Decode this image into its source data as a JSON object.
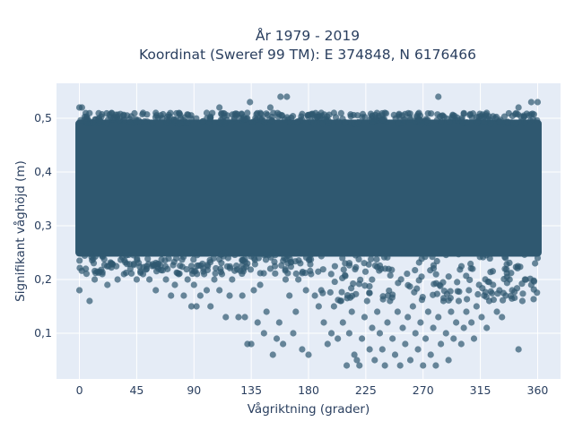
{
  "chart_data": {
    "type": "scatter",
    "title_lines": [
      "År 1979 - 2019",
      "Koordinat (Sweref 99 TM): E 374848, N 6176466"
    ],
    "xlabel": "Vågriktning (grader)",
    "ylabel": "Signifikant våghöjd (m)",
    "xlim": [
      -18,
      378
    ],
    "ylim": [
      0.015,
      0.565
    ],
    "x_ticks": [
      0,
      45,
      90,
      135,
      180,
      225,
      270,
      315,
      360
    ],
    "x_tick_labels": [
      "0",
      "45",
      "90",
      "135",
      "180",
      "225",
      "270",
      "315",
      "360"
    ],
    "y_ticks": [
      0.1,
      0.2,
      0.3,
      0.4,
      0.5
    ],
    "y_tick_labels": [
      "0,1",
      "0,2",
      "0,3",
      "0,4",
      "0,5"
    ],
    "grid": true,
    "legend": "none",
    "background": "#e5ecf6",
    "marker_color": "#2f5870",
    "marker_opacity": 0.7,
    "dense_band": {
      "x": [
        0,
        360
      ],
      "y": [
        0.25,
        0.49
      ]
    },
    "points": [
      [
        0,
        0.52
      ],
      [
        2,
        0.52
      ],
      [
        158,
        0.54
      ],
      [
        163,
        0.54
      ],
      [
        282,
        0.54
      ],
      [
        355,
        0.53
      ],
      [
        360,
        0.53
      ],
      [
        134,
        0.53
      ],
      [
        60,
        0.51
      ],
      [
        100,
        0.51
      ],
      [
        200,
        0.51
      ],
      [
        240,
        0.51
      ],
      [
        320,
        0.51
      ],
      [
        345,
        0.52
      ],
      [
        110,
        0.52
      ],
      [
        50,
        0.51
      ],
      [
        150,
        0.52
      ],
      [
        190,
        0.51
      ],
      [
        0,
        0.18
      ],
      [
        5,
        0.22
      ],
      [
        8,
        0.16
      ],
      [
        12,
        0.2
      ],
      [
        18,
        0.21
      ],
      [
        22,
        0.19
      ],
      [
        25,
        0.23
      ],
      [
        30,
        0.2
      ],
      [
        35,
        0.21
      ],
      [
        40,
        0.22
      ],
      [
        45,
        0.2
      ],
      [
        50,
        0.21
      ],
      [
        55,
        0.2
      ],
      [
        60,
        0.18
      ],
      [
        62,
        0.22
      ],
      [
        68,
        0.2
      ],
      [
        72,
        0.17
      ],
      [
        75,
        0.19
      ],
      [
        78,
        0.21
      ],
      [
        82,
        0.17
      ],
      [
        85,
        0.2
      ],
      [
        88,
        0.15
      ],
      [
        90,
        0.19
      ],
      [
        92,
        0.15
      ],
      [
        95,
        0.17
      ],
      [
        98,
        0.21
      ],
      [
        100,
        0.18
      ],
      [
        103,
        0.15
      ],
      [
        106,
        0.2
      ],
      [
        110,
        0.18
      ],
      [
        112,
        0.21
      ],
      [
        115,
        0.13
      ],
      [
        118,
        0.17
      ],
      [
        120,
        0.2
      ],
      [
        125,
        0.13
      ],
      [
        128,
        0.17
      ],
      [
        130,
        0.13
      ],
      [
        132,
        0.08
      ],
      [
        135,
        0.08
      ],
      [
        137,
        0.18
      ],
      [
        140,
        0.12
      ],
      [
        142,
        0.19
      ],
      [
        145,
        0.1
      ],
      [
        147,
        0.14
      ],
      [
        150,
        0.22
      ],
      [
        152,
        0.06
      ],
      [
        155,
        0.09
      ],
      [
        157,
        0.12
      ],
      [
        160,
        0.08
      ],
      [
        162,
        0.2
      ],
      [
        165,
        0.17
      ],
      [
        168,
        0.1
      ],
      [
        170,
        0.14
      ],
      [
        172,
        0.2
      ],
      [
        175,
        0.07
      ],
      [
        178,
        0.18
      ],
      [
        180,
        0.06
      ],
      [
        182,
        0.21
      ],
      [
        185,
        0.17
      ],
      [
        188,
        0.15
      ],
      [
        190,
        0.18
      ],
      [
        192,
        0.12
      ],
      [
        195,
        0.08
      ],
      [
        198,
        0.1
      ],
      [
        200,
        0.15
      ],
      [
        203,
        0.09
      ],
      [
        205,
        0.16
      ],
      [
        207,
        0.12
      ],
      [
        210,
        0.04
      ],
      [
        212,
        0.1
      ],
      [
        214,
        0.14
      ],
      [
        216,
        0.06
      ],
      [
        218,
        0.05
      ],
      [
        220,
        0.04
      ],
      [
        222,
        0.09
      ],
      [
        224,
        0.13
      ],
      [
        226,
        0.16
      ],
      [
        228,
        0.07
      ],
      [
        230,
        0.11
      ],
      [
        232,
        0.05
      ],
      [
        234,
        0.14
      ],
      [
        236,
        0.1
      ],
      [
        238,
        0.07
      ],
      [
        240,
        0.04
      ],
      [
        242,
        0.12
      ],
      [
        244,
        0.16
      ],
      [
        246,
        0.09
      ],
      [
        248,
        0.06
      ],
      [
        250,
        0.14
      ],
      [
        252,
        0.04
      ],
      [
        254,
        0.11
      ],
      [
        256,
        0.08
      ],
      [
        258,
        0.13
      ],
      [
        260,
        0.05
      ],
      [
        262,
        0.15
      ],
      [
        264,
        0.1
      ],
      [
        266,
        0.07
      ],
      [
        268,
        0.12
      ],
      [
        270,
        0.04
      ],
      [
        272,
        0.09
      ],
      [
        274,
        0.14
      ],
      [
        276,
        0.06
      ],
      [
        278,
        0.11
      ],
      [
        280,
        0.04
      ],
      [
        282,
        0.13
      ],
      [
        284,
        0.08
      ],
      [
        286,
        0.16
      ],
      [
        288,
        0.1
      ],
      [
        290,
        0.05
      ],
      [
        292,
        0.14
      ],
      [
        294,
        0.09
      ],
      [
        296,
        0.12
      ],
      [
        298,
        0.16
      ],
      [
        300,
        0.08
      ],
      [
        302,
        0.11
      ],
      [
        304,
        0.14
      ],
      [
        306,
        0.18
      ],
      [
        308,
        0.12
      ],
      [
        310,
        0.09
      ],
      [
        312,
        0.15
      ],
      [
        314,
        0.19
      ],
      [
        316,
        0.13
      ],
      [
        318,
        0.17
      ],
      [
        320,
        0.11
      ],
      [
        322,
        0.16
      ],
      [
        325,
        0.19
      ],
      [
        328,
        0.14
      ],
      [
        330,
        0.18
      ],
      [
        332,
        0.13
      ],
      [
        335,
        0.17
      ],
      [
        338,
        0.2
      ],
      [
        340,
        0.18
      ],
      [
        345,
        0.07
      ],
      [
        348,
        0.16
      ],
      [
        350,
        0.2
      ],
      [
        355,
        0.19
      ],
      [
        358,
        0.23
      ],
      [
        360,
        0.24
      ]
    ]
  }
}
